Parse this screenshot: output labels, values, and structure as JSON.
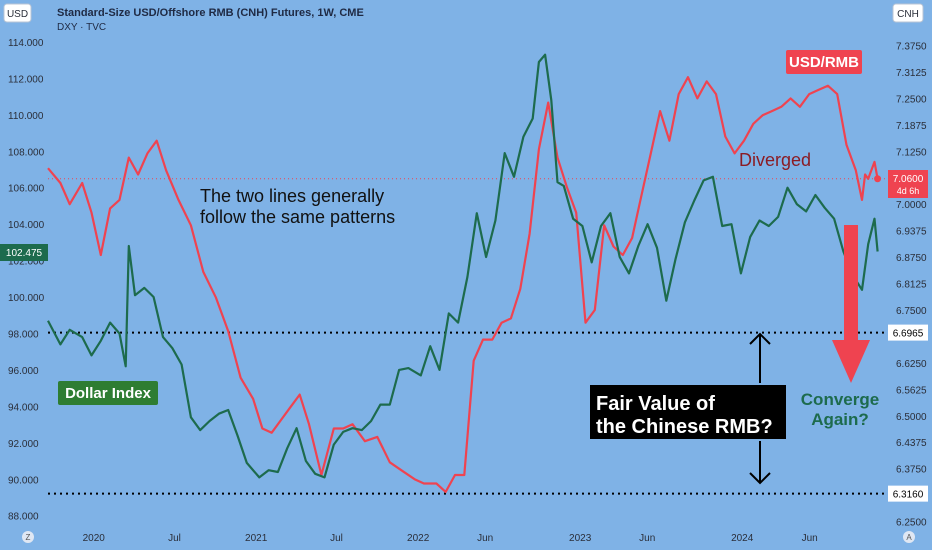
{
  "header": {
    "left_currency": "USD",
    "title": "Standard-Size USD/Offshore RMB (CNH) Futures, 1W, CME",
    "subtitle": "DXY · TVC",
    "right_currency": "CNH"
  },
  "chart_data": {
    "type": "line",
    "title": "Standard-Size USD/Offshore RMB (CNH) Futures, 1W, CME",
    "xlim": [
      "2019-09-20",
      "2024-11-20"
    ],
    "x_tick_labels": [
      "2020",
      "Jul",
      "2021",
      "Jul",
      "2022",
      "Jun",
      "2023",
      "Jun",
      "2024",
      "Jun"
    ],
    "x_tick_dates": [
      "2020-01-01",
      "2020-07-01",
      "2021-01-01",
      "2021-07-01",
      "2022-01-01",
      "2022-06-01",
      "2023-01-01",
      "2023-06-01",
      "2024-01-01",
      "2024-06-01"
    ],
    "left_axis": {
      "series": "DXY",
      "ylim": [
        87.6,
        114.6
      ],
      "ticks": [
        "114.000",
        "112.000",
        "110.000",
        "108.000",
        "106.000",
        "104.000",
        "102.000",
        "100.000",
        "98.000",
        "96.000",
        "94.000",
        "92.000",
        "90.000",
        "88.000"
      ],
      "last_value": "102.475"
    },
    "right_axis": {
      "series": "USD/RMB",
      "ylim": [
        6.2466,
        7.4092
      ],
      "ticks": [
        "7.3750",
        "7.3125",
        "7.2500",
        "7.1875",
        "7.1250",
        "7.0625",
        "7.0000",
        "6.9375",
        "6.8750",
        "6.8125",
        "6.7500",
        "6.6875",
        "6.6250",
        "6.5625",
        "6.5000",
        "6.4375",
        "6.3750",
        "6.3125",
        "6.2500"
      ],
      "last_value": "7.0600",
      "countdown": "4d 6h"
    },
    "levels": [
      {
        "value": 6.6965,
        "label": "6.6965"
      },
      {
        "value": 6.316,
        "label": "6.3160"
      }
    ],
    "series": [
      {
        "name": "USD/RMB",
        "axis": "right",
        "color": "#ef4350",
        "points": [
          [
            "2019-09-20",
            7.085
          ],
          [
            "2019-10-18",
            7.05
          ],
          [
            "2019-11-08",
            7.0
          ],
          [
            "2019-12-06",
            7.05
          ],
          [
            "2019-12-27",
            6.98
          ],
          [
            "2020-01-17",
            6.88
          ],
          [
            "2020-02-07",
            6.99
          ],
          [
            "2020-02-28",
            7.01
          ],
          [
            "2020-03-20",
            7.11
          ],
          [
            "2020-04-10",
            7.07
          ],
          [
            "2020-05-01",
            7.12
          ],
          [
            "2020-05-22",
            7.15
          ],
          [
            "2020-06-12",
            7.08
          ],
          [
            "2020-07-10",
            7.01
          ],
          [
            "2020-08-07",
            6.95
          ],
          [
            "2020-09-04",
            6.84
          ],
          [
            "2020-10-02",
            6.78
          ],
          [
            "2020-10-30",
            6.7
          ],
          [
            "2020-11-27",
            6.59
          ],
          [
            "2020-12-25",
            6.54
          ],
          [
            "2021-01-15",
            6.47
          ],
          [
            "2021-02-05",
            6.46
          ],
          [
            "2021-02-26",
            6.49
          ],
          [
            "2021-03-19",
            6.52
          ],
          [
            "2021-04-09",
            6.55
          ],
          [
            "2021-04-30",
            6.48
          ],
          [
            "2021-05-28",
            6.36
          ],
          [
            "2021-06-25",
            6.47
          ],
          [
            "2021-07-16",
            6.47
          ],
          [
            "2021-08-06",
            6.48
          ],
          [
            "2021-09-03",
            6.44
          ],
          [
            "2021-10-01",
            6.45
          ],
          [
            "2021-10-29",
            6.39
          ],
          [
            "2021-11-26",
            6.37
          ],
          [
            "2021-12-24",
            6.35
          ],
          [
            "2022-01-14",
            6.34
          ],
          [
            "2022-02-11",
            6.34
          ],
          [
            "2022-03-04",
            6.32
          ],
          [
            "2022-03-25",
            6.36
          ],
          [
            "2022-04-15",
            6.36
          ],
          [
            "2022-05-06",
            6.63
          ],
          [
            "2022-05-27",
            6.68
          ],
          [
            "2022-06-17",
            6.68
          ],
          [
            "2022-07-08",
            6.72
          ],
          [
            "2022-07-29",
            6.73
          ],
          [
            "2022-08-19",
            6.8
          ],
          [
            "2022-09-09",
            6.93
          ],
          [
            "2022-09-30",
            7.13
          ],
          [
            "2022-10-21",
            7.24
          ],
          [
            "2022-11-11",
            7.11
          ],
          [
            "2022-12-02",
            7.04
          ],
          [
            "2022-12-23",
            6.98
          ],
          [
            "2023-01-13",
            6.72
          ],
          [
            "2023-02-03",
            6.75
          ],
          [
            "2023-02-24",
            6.95
          ],
          [
            "2023-03-17",
            6.9
          ],
          [
            "2023-04-07",
            6.88
          ],
          [
            "2023-04-28",
            6.92
          ],
          [
            "2023-05-19",
            7.02
          ],
          [
            "2023-06-09",
            7.12
          ],
          [
            "2023-06-30",
            7.22
          ],
          [
            "2023-07-21",
            7.15
          ],
          [
            "2023-08-11",
            7.26
          ],
          [
            "2023-09-01",
            7.3
          ],
          [
            "2023-09-22",
            7.25
          ],
          [
            "2023-10-13",
            7.29
          ],
          [
            "2023-11-03",
            7.26
          ],
          [
            "2023-11-24",
            7.16
          ],
          [
            "2023-12-15",
            7.12
          ],
          [
            "2024-01-05",
            7.15
          ],
          [
            "2024-01-26",
            7.19
          ],
          [
            "2024-02-16",
            7.21
          ],
          [
            "2024-03-08",
            7.22
          ],
          [
            "2024-03-29",
            7.23
          ],
          [
            "2024-04-19",
            7.25
          ],
          [
            "2024-05-10",
            7.23
          ],
          [
            "2024-05-31",
            7.26
          ],
          [
            "2024-06-21",
            7.27
          ],
          [
            "2024-07-12",
            7.28
          ],
          [
            "2024-08-02",
            7.26
          ],
          [
            "2024-08-23",
            7.14
          ],
          [
            "2024-09-13",
            7.08
          ],
          [
            "2024-09-27",
            7.01
          ],
          [
            "2024-10-04",
            7.07
          ],
          [
            "2024-10-11",
            7.06
          ],
          [
            "2024-10-25",
            7.1
          ],
          [
            "2024-11-01",
            7.06
          ]
        ]
      },
      {
        "name": "Dollar Index",
        "axis": "left",
        "color": "#1d6b4d",
        "points": [
          [
            "2019-09-20",
            98.7
          ],
          [
            "2019-10-18",
            97.4
          ],
          [
            "2019-11-08",
            98.2
          ],
          [
            "2019-12-06",
            97.8
          ],
          [
            "2019-12-27",
            96.8
          ],
          [
            "2020-01-17",
            97.6
          ],
          [
            "2020-02-07",
            98.6
          ],
          [
            "2020-02-28",
            98.0
          ],
          [
            "2020-03-13",
            96.2
          ],
          [
            "2020-03-20",
            102.8
          ],
          [
            "2020-04-03",
            100.1
          ],
          [
            "2020-04-24",
            100.5
          ],
          [
            "2020-05-15",
            100.0
          ],
          [
            "2020-06-05",
            97.8
          ],
          [
            "2020-06-26",
            97.2
          ],
          [
            "2020-07-17",
            96.3
          ],
          [
            "2020-08-07",
            93.4
          ],
          [
            "2020-08-28",
            92.7
          ],
          [
            "2020-09-18",
            93.2
          ],
          [
            "2020-10-09",
            93.6
          ],
          [
            "2020-10-30",
            93.8
          ],
          [
            "2020-11-20",
            92.4
          ],
          [
            "2020-12-11",
            90.9
          ],
          [
            "2021-01-08",
            90.1
          ],
          [
            "2021-01-29",
            90.5
          ],
          [
            "2021-02-19",
            90.4
          ],
          [
            "2021-03-12",
            91.7
          ],
          [
            "2021-04-02",
            92.8
          ],
          [
            "2021-04-23",
            91.0
          ],
          [
            "2021-05-14",
            90.3
          ],
          [
            "2021-06-04",
            90.1
          ],
          [
            "2021-06-25",
            91.9
          ],
          [
            "2021-07-16",
            92.6
          ],
          [
            "2021-08-06",
            92.8
          ],
          [
            "2021-08-27",
            92.7
          ],
          [
            "2021-09-17",
            93.2
          ],
          [
            "2021-10-08",
            94.1
          ],
          [
            "2021-10-29",
            94.1
          ],
          [
            "2021-11-19",
            96.0
          ],
          [
            "2021-12-10",
            96.1
          ],
          [
            "2022-01-07",
            95.7
          ],
          [
            "2022-01-28",
            97.3
          ],
          [
            "2022-02-18",
            96.0
          ],
          [
            "2022-03-11",
            99.1
          ],
          [
            "2022-04-01",
            98.6
          ],
          [
            "2022-04-22",
            101.1
          ],
          [
            "2022-05-13",
            104.6
          ],
          [
            "2022-06-03",
            102.2
          ],
          [
            "2022-06-24",
            104.2
          ],
          [
            "2022-07-15",
            107.9
          ],
          [
            "2022-08-05",
            106.6
          ],
          [
            "2022-08-26",
            108.8
          ],
          [
            "2022-09-16",
            109.8
          ],
          [
            "2022-09-30",
            112.9
          ],
          [
            "2022-10-14",
            113.3
          ],
          [
            "2022-10-28",
            110.8
          ],
          [
            "2022-11-11",
            106.3
          ],
          [
            "2022-11-25",
            106.1
          ],
          [
            "2022-12-16",
            104.3
          ],
          [
            "2023-01-06",
            103.9
          ],
          [
            "2023-01-27",
            101.9
          ],
          [
            "2023-02-17",
            103.9
          ],
          [
            "2023-03-10",
            104.6
          ],
          [
            "2023-03-31",
            102.2
          ],
          [
            "2023-04-21",
            101.3
          ],
          [
            "2023-05-12",
            102.8
          ],
          [
            "2023-06-02",
            104.0
          ],
          [
            "2023-06-23",
            102.7
          ],
          [
            "2023-07-14",
            99.8
          ],
          [
            "2023-08-04",
            102.1
          ],
          [
            "2023-08-25",
            104.1
          ],
          [
            "2023-09-15",
            105.3
          ],
          [
            "2023-10-06",
            106.4
          ],
          [
            "2023-10-27",
            106.6
          ],
          [
            "2023-11-17",
            103.9
          ],
          [
            "2023-12-08",
            104.0
          ],
          [
            "2023-12-29",
            101.3
          ],
          [
            "2024-01-19",
            103.3
          ],
          [
            "2024-02-09",
            104.2
          ],
          [
            "2024-03-01",
            103.9
          ],
          [
            "2024-03-22",
            104.4
          ],
          [
            "2024-04-12",
            106.0
          ],
          [
            "2024-05-03",
            105.1
          ],
          [
            "2024-05-24",
            104.7
          ],
          [
            "2024-06-14",
            105.6
          ],
          [
            "2024-07-05",
            104.9
          ],
          [
            "2024-07-26",
            104.3
          ],
          [
            "2024-08-16",
            102.5
          ],
          [
            "2024-09-06",
            101.2
          ],
          [
            "2024-09-27",
            100.4
          ],
          [
            "2024-10-11",
            102.9
          ],
          [
            "2024-10-25",
            104.3
          ],
          [
            "2024-11-01",
            102.5
          ]
        ]
      }
    ],
    "annotations": {
      "patterns": [
        "The two lines generally",
        "follow the same patterns"
      ],
      "usdrmb_label": "USD/RMB",
      "diverged": "Diverged",
      "dollar_index_label": "Dollar Index",
      "fair_value": [
        "Fair Value of",
        "the Chinese RMB?"
      ],
      "converge": [
        "Converge",
        "Again?"
      ]
    },
    "colors": {
      "background": "#7fb2e6",
      "usdrmb": "#ef4350",
      "dxy": "#1d6b4d",
      "label_box_red": "#ef4350",
      "label_box_green": "#2e7d32",
      "fair_value_box": "#000000"
    }
  }
}
